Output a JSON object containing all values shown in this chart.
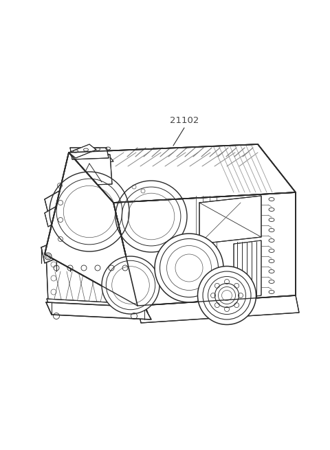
{
  "background_color": "#ffffff",
  "label_text": "21102",
  "label_color": "#444444",
  "line_color": "#2a2a2a",
  "line_color_light": "#555555",
  "figsize": [
    4.8,
    6.55
  ],
  "dpi": 100,
  "engine_image_encoded": ""
}
